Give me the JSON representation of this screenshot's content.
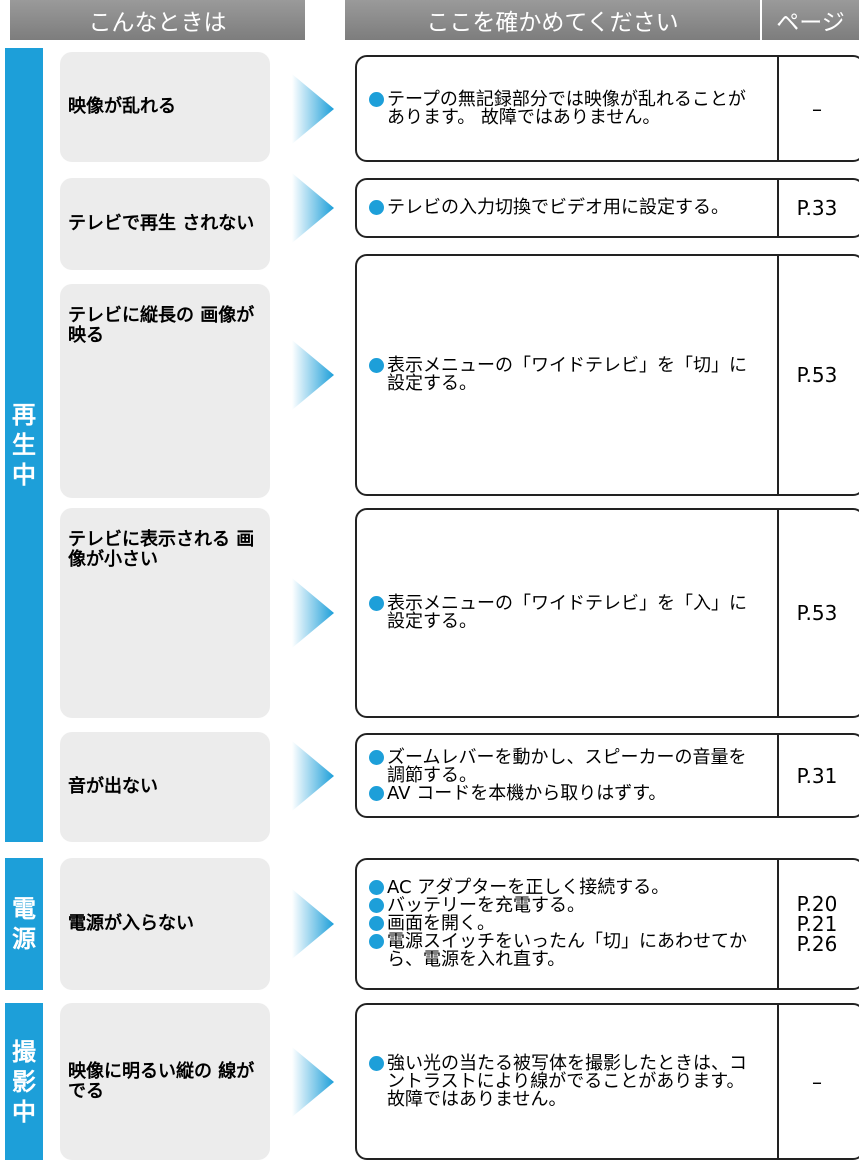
{
  "header": {
    "symptom": "こんなときは",
    "check": "ここを確かめてください",
    "page": "ページ"
  },
  "sections": [
    {
      "label": "再生中",
      "rows": [
        {
          "symptom": "映像が乱れる",
          "checks": [
            "テープの無記録部分では映像が乱れることがあります。 故障ではありません。"
          ],
          "pages": [
            "–"
          ]
        },
        {
          "symptom": "テレビで再生 されない",
          "checks": [
            "テレビの入力切換でビデオ用に設定する。"
          ],
          "pages": [
            "P.33"
          ]
        },
        {
          "symptom": "テレビに縦長の 画像が映る",
          "checks": [
            "表示メニューの「ワイドテレビ」を「切」に設定する。"
          ],
          "pages": [
            "P.53"
          ]
        },
        {
          "symptom": "テレビに表示される 画像が小さい",
          "checks": [
            "表示メニューの「ワイドテレビ」を「入」に設定する。"
          ],
          "pages": [
            "P.53"
          ]
        },
        {
          "symptom": "音が出ない",
          "checks": [
            "ズームレバーを動かし、スピーカーの音量を調節する。",
            "AV コードを本機から取りはずす。"
          ],
          "pages": [
            "P.31"
          ]
        }
      ]
    },
    {
      "label": "電源",
      "rows": [
        {
          "symptom": "電源が入らない",
          "checks": [
            "AC アダプターを正しく接続する。",
            "バッテリーを充電する。",
            "画面を開く。",
            "電源スイッチをいったん「切」にあわせてから、電源を入れ直す。"
          ],
          "pages": [
            "P.20",
            "P.21",
            "P.26"
          ]
        }
      ]
    },
    {
      "label": "撮影中",
      "rows": [
        {
          "symptom": "映像に明るい縦の 線がでる",
          "checks": [
            "強い光の当たる被写体を撮影したときは、コントラストにより線がでることがあります。故障ではありません。"
          ],
          "pages": [
            "–"
          ]
        }
      ]
    }
  ]
}
